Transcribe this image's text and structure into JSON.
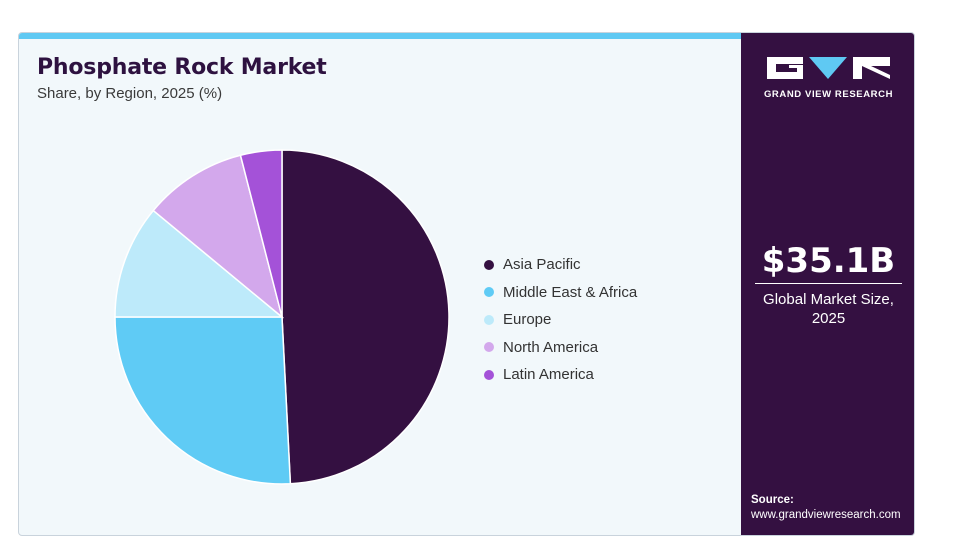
{
  "header": {
    "title": "Phosphate Rock Market",
    "subtitle": "Share, by Region, 2025 (%)"
  },
  "brand": {
    "name": "GRAND VIEW RESEARCH",
    "logo_icon": "gvr-logo-icon"
  },
  "highlight": {
    "value": "$35.1B",
    "caption_line1": "Global Market Size,",
    "caption_line2": "2025"
  },
  "source": {
    "label": "Source:",
    "url": "www.grandviewresearch.com"
  },
  "colors": {
    "accent": "#5fc9f3",
    "panel": "#341041",
    "background": "#f2f8fb"
  },
  "chart_data": {
    "type": "pie",
    "title": "Phosphate Rock Market",
    "subtitle": "Share, by Region, 2025 (%)",
    "legend_position": "right",
    "slices": [
      {
        "name": "Asia Pacific",
        "value": 49.2,
        "color": "#341041"
      },
      {
        "name": "Middle East & Africa",
        "value": 25.8,
        "color": "#5fcbf5"
      },
      {
        "name": "Europe",
        "value": 11.0,
        "color": "#bdeafa"
      },
      {
        "name": "North America",
        "value": 10.0,
        "color": "#d3a8ec"
      },
      {
        "name": "Latin America",
        "value": 4.0,
        "color": "#a452d8"
      }
    ]
  }
}
